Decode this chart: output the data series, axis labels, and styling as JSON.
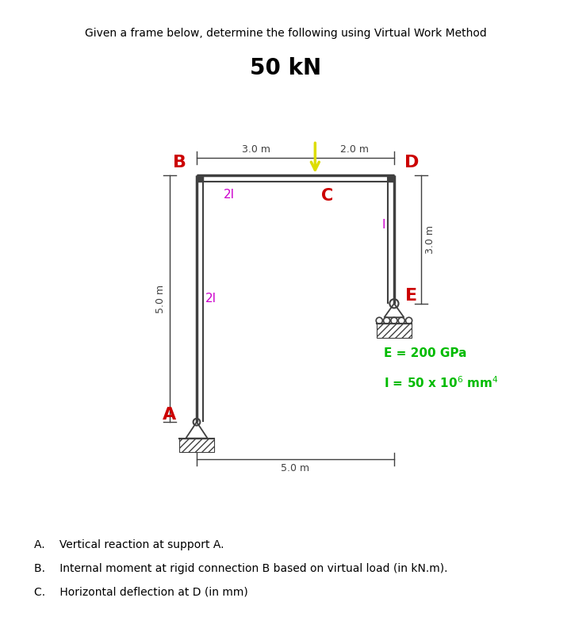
{
  "title_text": "Given a frame below, determine the following using Virtual Work Method",
  "load_label": "50 kN",
  "bg_color": "#ffffff",
  "frame_color": "#404040",
  "load_color": "#DDDD00",
  "member_label_color": "#CC00CC",
  "node_label_color": "#CC0000",
  "props_color": "#00BB00",
  "dim_color": "#404040",
  "questions": [
    "A.  Vertical reaction at support A.",
    "B.  Internal moment at rigid connection B based on virtual load (in kN.m).",
    "C.  Horizontal deflection at D (in mm)"
  ],
  "frame_lw": 2.5,
  "inner_frame_lw": 1.5,
  "xlim": [
    0,
    10
  ],
  "ylim": [
    0,
    10
  ]
}
